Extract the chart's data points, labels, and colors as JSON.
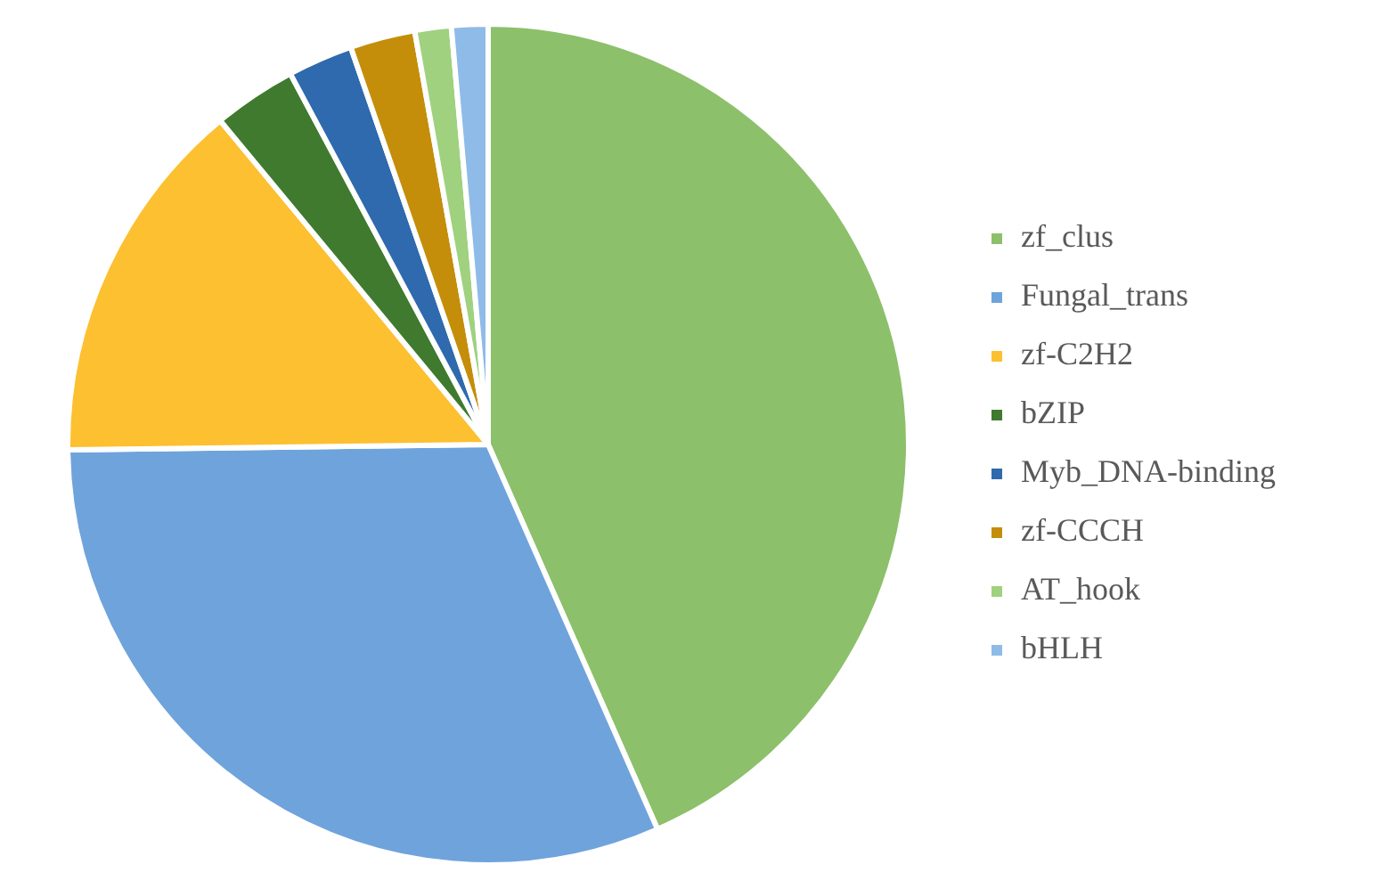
{
  "chart_data": {
    "type": "pie",
    "categories": [
      "zf_clus",
      "Fungal_trans",
      "zf-C2H2",
      "bZIP",
      "Myb_DNA-binding",
      "zf-CCCH",
      "AT_hook",
      "bHLH"
    ],
    "values": [
      43.4,
      31.4,
      14.2,
      3.2,
      2.5,
      2.5,
      1.4,
      1.4
    ],
    "colors": [
      "#8cc06a",
      "#6fa3dc",
      "#fcc030",
      "#3f7a2f",
      "#2e6aad",
      "#c48e0a",
      "#9fd17f",
      "#8fbbe8"
    ],
    "legend": "right"
  }
}
